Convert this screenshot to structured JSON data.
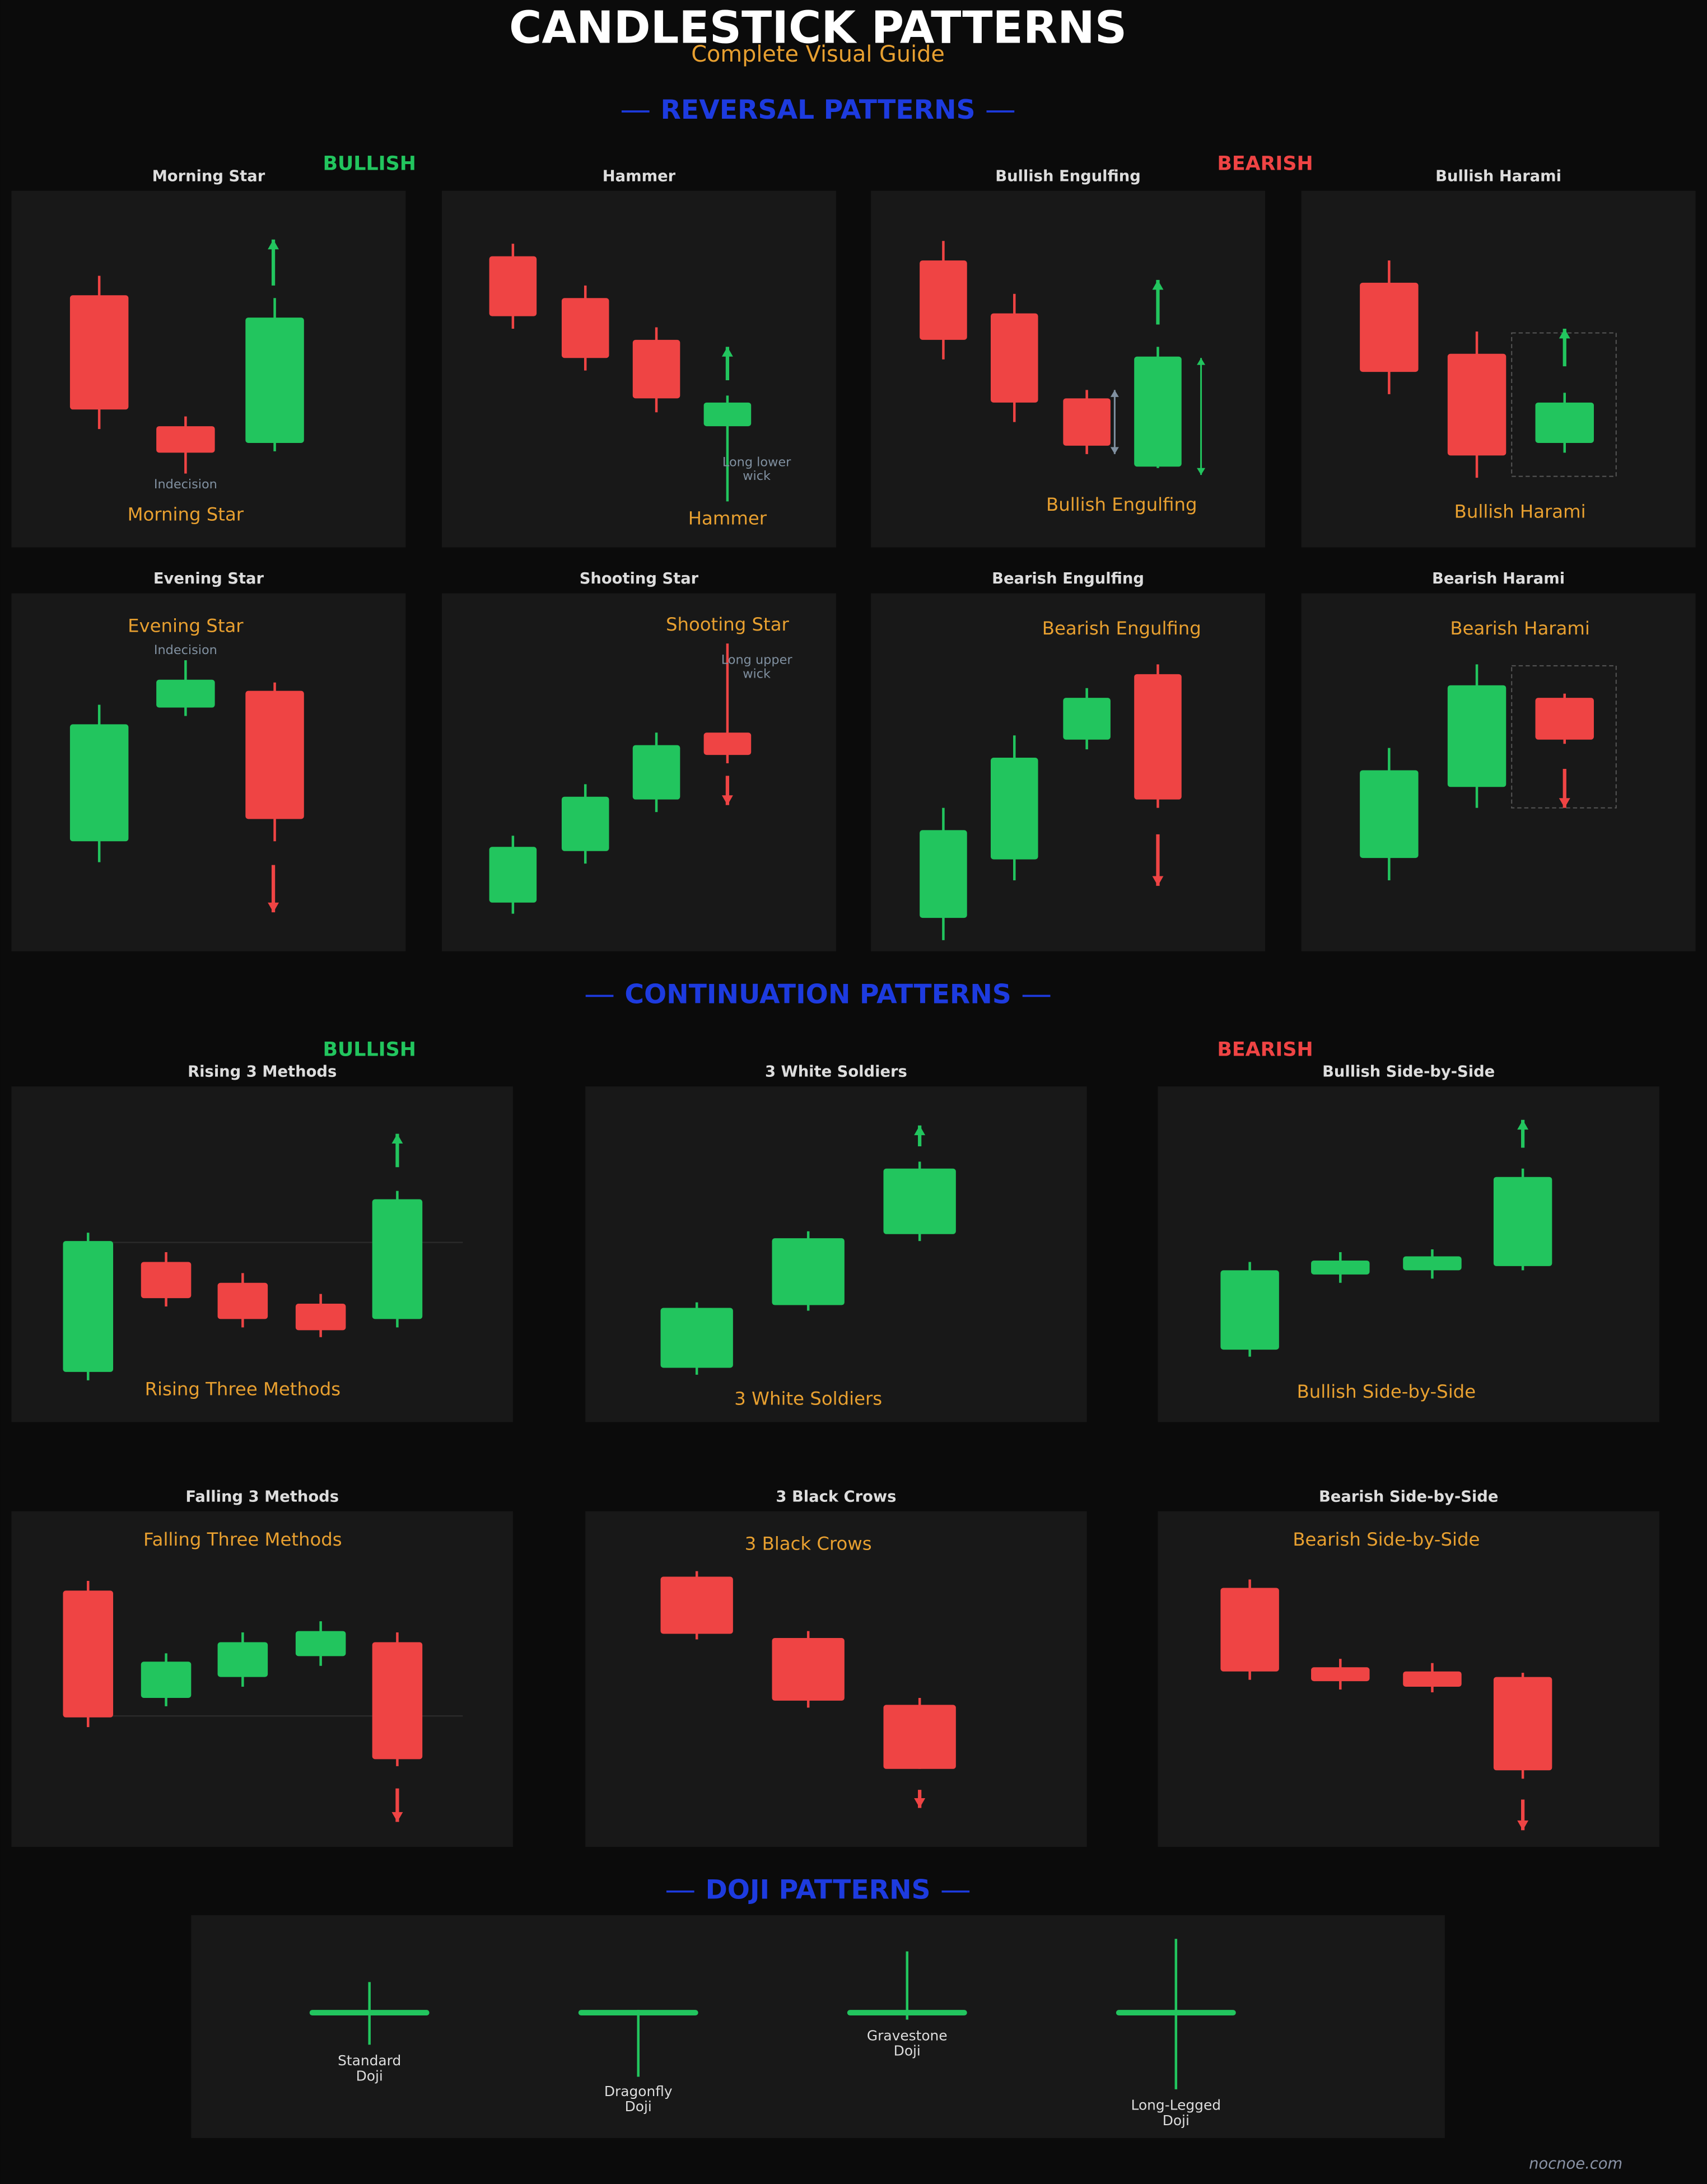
{
  "header": {
    "title": "CANDLESTICK PATTERNS",
    "subtitle": "Complete Visual Guide"
  },
  "sections": [
    {
      "heading": "REVERSAL PATTERNS",
      "bullish_label": "BULLISH",
      "bearish_label": "BEARISH",
      "panels": [
        {
          "title": "Morning Star",
          "caption": "Morning Star",
          "notes": [
            "Indecision"
          ]
        },
        {
          "title": "Hammer",
          "caption": "Hammer",
          "notes": [
            "Long lower",
            "wick"
          ]
        },
        {
          "title": "Bullish Engulfing",
          "caption": "Bullish Engulfing"
        },
        {
          "title": "Bullish Harami",
          "caption": "Bullish Harami"
        },
        {
          "title": "Evening Star",
          "caption": "Evening Star",
          "notes": [
            "Indecision"
          ]
        },
        {
          "title": "Shooting Star",
          "caption": "Shooting Star",
          "notes": [
            "Long upper",
            "wick"
          ]
        },
        {
          "title": "Bearish Engulfing",
          "caption": "Bearish Engulfing"
        },
        {
          "title": "Bearish Harami",
          "caption": "Bearish Harami"
        }
      ]
    },
    {
      "heading": "CONTINUATION PATTERNS",
      "bullish_label": "BULLISH",
      "bearish_label": "BEARISH",
      "panels": [
        {
          "title": "Rising 3 Methods",
          "caption": "Rising Three Methods"
        },
        {
          "title": "3 White Soldiers",
          "caption": "3 White Soldiers"
        },
        {
          "title": "Bullish Side-by-Side",
          "caption": "Bullish Side-by-Side"
        },
        {
          "title": "Falling 3 Methods",
          "caption": "Falling Three Methods"
        },
        {
          "title": "3 Black Crows",
          "caption": "3 Black Crows"
        },
        {
          "title": "Bearish Side-by-Side",
          "caption": "Bearish Side-by-Side"
        }
      ]
    },
    {
      "heading": "DOJI PATTERNS",
      "dojis": [
        {
          "label": [
            "Standard",
            "Doji"
          ]
        },
        {
          "label": [
            "Dragonfly",
            "Doji"
          ]
        },
        {
          "label": [
            "Gravestone",
            "Doji"
          ]
        },
        {
          "label": [
            "Long-Legged",
            "Doji"
          ]
        }
      ]
    }
  ],
  "footer": "nocnoe.com"
}
